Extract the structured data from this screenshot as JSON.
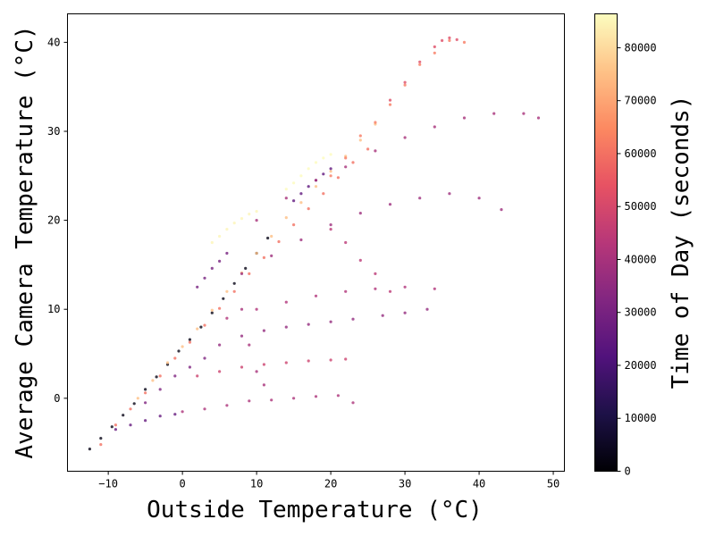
{
  "chart_data": {
    "type": "scatter",
    "xlabel": "Outside Temperature (°C)",
    "ylabel": "Average Camera Temperature (°C)",
    "xlim": [
      -15.5,
      51.5
    ],
    "ylim": [
      -8.2,
      43.2
    ],
    "x_ticks": [
      -10,
      0,
      10,
      20,
      30,
      40,
      50
    ],
    "y_ticks": [
      0,
      10,
      20,
      30,
      40
    ],
    "grid": false,
    "colorbar": {
      "label": "Time of Day (seconds)",
      "range": [
        0,
        86400
      ],
      "ticks": [
        0,
        10000,
        20000,
        30000,
        40000,
        50000,
        60000,
        70000,
        80000
      ],
      "colormap": "magma"
    },
    "point_groups": [
      {
        "x": [
          -12.5,
          -11,
          -9.5,
          -8,
          -6.5,
          -5,
          -3.5,
          -2,
          -0.5,
          1,
          2.5,
          4,
          5.5,
          7,
          8.5,
          10,
          11.5
        ],
        "y": [
          -5.7,
          -4.5,
          -3.2,
          -1.9,
          -0.6,
          1.0,
          2.4,
          3.8,
          5.3,
          6.6,
          8.0,
          9.6,
          11.2,
          12.9,
          14.6,
          16.3,
          18.0
        ],
        "c": 3000
      },
      {
        "x": [
          -11,
          -9,
          -7,
          -5,
          -3,
          -1,
          1,
          3,
          5,
          7,
          9,
          11,
          13,
          15,
          17,
          19,
          21,
          23,
          25
        ],
        "y": [
          -5.2,
          -3.0,
          -1.2,
          0.6,
          2.5,
          4.5,
          6.3,
          8.2,
          10.1,
          12.0,
          14.0,
          15.8,
          17.6,
          19.5,
          21.3,
          23.0,
          24.8,
          26.5,
          28.0
        ],
        "c": 60000
      },
      {
        "x": [
          -6,
          -4,
          -2,
          0,
          2,
          4,
          6,
          8,
          10,
          12,
          14,
          16,
          18,
          20,
          22,
          24,
          26
        ],
        "y": [
          0.0,
          2.0,
          4.0,
          5.8,
          7.8,
          9.9,
          12.0,
          14.1,
          16.3,
          18.2,
          20.3,
          22.0,
          23.8,
          25.5,
          27.2,
          29.0,
          30.8
        ],
        "c": 75000
      },
      {
        "x": [
          20,
          22,
          24,
          26,
          28,
          30,
          32,
          34,
          36,
          38
        ],
        "y": [
          25.0,
          27.0,
          29.5,
          31.0,
          33.0,
          35.2,
          37.5,
          38.8,
          40.2,
          40.0
        ],
        "c": 62000
      },
      {
        "x": [
          28,
          30,
          32,
          34,
          35,
          36,
          37
        ],
        "y": [
          33.5,
          35.5,
          37.8,
          39.5,
          40.2,
          40.5,
          40.3
        ],
        "c": 52000
      },
      {
        "x": [
          2,
          3,
          4,
          5,
          6
        ],
        "y": [
          12.5,
          13.5,
          14.6,
          15.4,
          16.3
        ],
        "c": 30000
      },
      {
        "x": [
          4,
          5,
          6,
          7,
          8,
          9,
          10
        ],
        "y": [
          17.5,
          18.2,
          19.0,
          19.7,
          20.2,
          20.7,
          21.0
        ],
        "c": 85000
      },
      {
        "x": [
          14,
          15,
          16,
          17,
          18,
          19,
          20
        ],
        "y": [
          23.5,
          24.2,
          25.0,
          25.8,
          26.5,
          27.0,
          27.4
        ],
        "c": 86000
      },
      {
        "x": [
          15,
          16,
          17,
          18,
          19,
          20
        ],
        "y": [
          22.2,
          23.0,
          23.8,
          24.5,
          25.2,
          25.8
        ],
        "c": 25000
      },
      {
        "x": [
          10,
          14,
          18,
          22,
          26,
          30,
          34,
          38,
          42,
          46,
          48
        ],
        "y": [
          20.0,
          22.5,
          24.5,
          26.0,
          27.8,
          29.3,
          30.5,
          31.5,
          32.0,
          32.0,
          31.5
        ],
        "c": 40000
      },
      {
        "x": [
          8,
          12,
          16,
          20,
          24,
          28,
          32,
          36,
          40,
          43
        ],
        "y": [
          14.0,
          16.0,
          17.8,
          19.5,
          20.8,
          21.8,
          22.5,
          23.0,
          22.5,
          21.2
        ],
        "c": 38000
      },
      {
        "x": [
          6,
          10,
          14,
          18,
          22,
          26,
          30,
          34
        ],
        "y": [
          9.0,
          10.0,
          10.8,
          11.5,
          12.0,
          12.3,
          12.5,
          12.3
        ],
        "c": 42000
      },
      {
        "x": [
          5,
          8,
          11,
          14,
          17,
          20,
          23,
          27,
          30,
          33
        ],
        "y": [
          6.0,
          7.0,
          7.6,
          8.0,
          8.3,
          8.6,
          8.9,
          9.3,
          9.6,
          10.0
        ],
        "c": 36000
      },
      {
        "x": [
          2,
          5,
          8,
          11,
          14,
          17,
          20,
          22
        ],
        "y": [
          2.5,
          3.0,
          3.5,
          3.8,
          4.0,
          4.2,
          4.3,
          4.4
        ],
        "c": 48000
      },
      {
        "x": [
          0,
          3,
          6,
          9,
          12,
          15,
          18,
          21,
          23
        ],
        "y": [
          -1.5,
          -1.2,
          -0.8,
          -0.3,
          -0.2,
          0.0,
          0.2,
          0.3,
          -0.5
        ],
        "c": 41000
      },
      {
        "x": [
          8,
          9,
          10,
          11
        ],
        "y": [
          10.0,
          6.0,
          3.0,
          1.5
        ],
        "c": 40000
      },
      {
        "x": [
          -9,
          -7,
          -5,
          -3,
          -1
        ],
        "y": [
          -3.5,
          -3.0,
          -2.5,
          -2.0,
          -1.8
        ],
        "c": 26000
      },
      {
        "x": [
          -5,
          -3,
          -1,
          1,
          3
        ],
        "y": [
          -0.5,
          1.0,
          2.5,
          3.5,
          4.5
        ],
        "c": 32000
      },
      {
        "x": [
          20,
          22,
          24,
          26,
          28
        ],
        "y": [
          19.0,
          17.5,
          15.5,
          14.0,
          12.0
        ],
        "c": 44000
      }
    ]
  }
}
